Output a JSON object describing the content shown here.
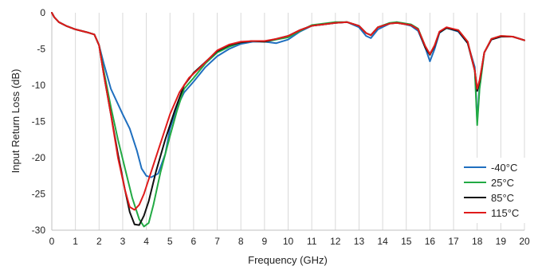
{
  "chart_data": {
    "type": "line",
    "title": "",
    "xlabel": "Frequency (GHz)",
    "ylabel": "Input Return Loss (dB)",
    "xlim": [
      0,
      20
    ],
    "ylim": [
      -30,
      0
    ],
    "xticks": [
      0,
      1,
      2,
      3,
      4,
      5,
      6,
      7,
      8,
      9,
      10,
      11,
      12,
      13,
      14,
      15,
      16,
      17,
      18,
      19,
      20
    ],
    "yticks": [
      0,
      -5,
      -10,
      -15,
      -20,
      -25,
      -30
    ],
    "grid": "vertical",
    "legend_position": "bottom-right",
    "series": [
      {
        "name": "-40°C",
        "color": "#1f6fbf",
        "points": [
          [
            0,
            0
          ],
          [
            0.1,
            -0.6
          ],
          [
            0.3,
            -1.3
          ],
          [
            0.6,
            -1.8
          ],
          [
            1,
            -2.3
          ],
          [
            1.5,
            -2.7
          ],
          [
            1.8,
            -3.0
          ],
          [
            2,
            -4.5
          ],
          [
            2.2,
            -7
          ],
          [
            2.5,
            -10.5
          ],
          [
            3,
            -14
          ],
          [
            3.3,
            -16
          ],
          [
            3.6,
            -19
          ],
          [
            3.8,
            -21.5
          ],
          [
            4,
            -22.5
          ],
          [
            4.2,
            -22.7
          ],
          [
            4.5,
            -22.2
          ],
          [
            4.8,
            -19.5
          ],
          [
            5,
            -16
          ],
          [
            5.3,
            -13
          ],
          [
            5.6,
            -11
          ],
          [
            6,
            -9.5
          ],
          [
            6.5,
            -7.5
          ],
          [
            7,
            -6
          ],
          [
            7.5,
            -5
          ],
          [
            8,
            -4.3
          ],
          [
            8.5,
            -4.0
          ],
          [
            9,
            -4.0
          ],
          [
            9.5,
            -4.2
          ],
          [
            10,
            -3.7
          ],
          [
            10.5,
            -2.6
          ],
          [
            11,
            -1.8
          ],
          [
            11.5,
            -1.6
          ],
          [
            12,
            -1.4
          ],
          [
            12.5,
            -1.3
          ],
          [
            13,
            -2.0
          ],
          [
            13.3,
            -3.2
          ],
          [
            13.5,
            -3.5
          ],
          [
            13.8,
            -2.3
          ],
          [
            14.3,
            -1.5
          ],
          [
            14.6,
            -1.3
          ],
          [
            15.2,
            -1.8
          ],
          [
            15.5,
            -2.5
          ],
          [
            15.8,
            -4.8
          ],
          [
            16,
            -6.7
          ],
          [
            16.2,
            -5.0
          ],
          [
            16.4,
            -2.8
          ],
          [
            16.7,
            -2.1
          ],
          [
            17.2,
            -2.6
          ],
          [
            17.6,
            -4.2
          ],
          [
            17.9,
            -7.5
          ],
          [
            18,
            -15
          ],
          [
            18.1,
            -10
          ],
          [
            18.3,
            -5.5
          ],
          [
            18.6,
            -3.7
          ],
          [
            19,
            -3.3
          ],
          [
            19.5,
            -3.3
          ],
          [
            20,
            -3.8
          ]
        ]
      },
      {
        "name": "25°C",
        "color": "#22aa44",
        "points": [
          [
            0,
            0
          ],
          [
            0.1,
            -0.6
          ],
          [
            0.3,
            -1.3
          ],
          [
            0.6,
            -1.8
          ],
          [
            1,
            -2.3
          ],
          [
            1.5,
            -2.7
          ],
          [
            1.8,
            -3.0
          ],
          [
            2,
            -4.5
          ],
          [
            2.2,
            -8
          ],
          [
            2.5,
            -13
          ],
          [
            2.8,
            -17.5
          ],
          [
            3.1,
            -21.5
          ],
          [
            3.4,
            -25.5
          ],
          [
            3.7,
            -28.5
          ],
          [
            3.9,
            -29.5
          ],
          [
            4.1,
            -29
          ],
          [
            4.3,
            -26.5
          ],
          [
            4.6,
            -22
          ],
          [
            5,
            -17
          ],
          [
            5.3,
            -13.5
          ],
          [
            5.6,
            -10.5
          ],
          [
            6,
            -9
          ],
          [
            6.5,
            -7
          ],
          [
            7,
            -5.5
          ],
          [
            7.5,
            -4.7
          ],
          [
            8,
            -4.1
          ],
          [
            8.5,
            -3.9
          ],
          [
            9,
            -4.0
          ],
          [
            9.5,
            -3.7
          ],
          [
            10,
            -3.4
          ],
          [
            10.5,
            -2.5
          ],
          [
            11,
            -1.7
          ],
          [
            11.5,
            -1.5
          ],
          [
            12,
            -1.3
          ],
          [
            12.5,
            -1.3
          ],
          [
            13,
            -1.8
          ],
          [
            13.3,
            -2.8
          ],
          [
            13.5,
            -3.1
          ],
          [
            13.8,
            -2.0
          ],
          [
            14.3,
            -1.4
          ],
          [
            14.6,
            -1.3
          ],
          [
            15.2,
            -1.6
          ],
          [
            15.5,
            -2.2
          ],
          [
            15.8,
            -4.6
          ],
          [
            16,
            -5.8
          ],
          [
            16.2,
            -4.5
          ],
          [
            16.4,
            -2.7
          ],
          [
            16.7,
            -2.1
          ],
          [
            17.2,
            -2.4
          ],
          [
            17.6,
            -4.0
          ],
          [
            17.9,
            -8
          ],
          [
            18,
            -15.5
          ],
          [
            18.1,
            -10.5
          ],
          [
            18.3,
            -5.5
          ],
          [
            18.6,
            -3.6
          ],
          [
            19,
            -3.2
          ],
          [
            19.5,
            -3.3
          ],
          [
            20,
            -3.8
          ]
        ]
      },
      {
        "name": "85°C",
        "color": "#111111",
        "points": [
          [
            0,
            0
          ],
          [
            0.1,
            -0.6
          ],
          [
            0.3,
            -1.3
          ],
          [
            0.6,
            -1.8
          ],
          [
            1,
            -2.3
          ],
          [
            1.5,
            -2.7
          ],
          [
            1.8,
            -3.0
          ],
          [
            2,
            -4.5
          ],
          [
            2.2,
            -8.5
          ],
          [
            2.5,
            -14
          ],
          [
            2.8,
            -19.5
          ],
          [
            3.1,
            -24.5
          ],
          [
            3.3,
            -27.5
          ],
          [
            3.5,
            -29.2
          ],
          [
            3.7,
            -29.3
          ],
          [
            3.9,
            -28
          ],
          [
            4.1,
            -26
          ],
          [
            4.4,
            -22
          ],
          [
            4.8,
            -17.5
          ],
          [
            5.2,
            -13.5
          ],
          [
            5.6,
            -10
          ],
          [
            6,
            -8.3
          ],
          [
            6.5,
            -6.8
          ],
          [
            7,
            -5.3
          ],
          [
            7.5,
            -4.5
          ],
          [
            8,
            -4.1
          ],
          [
            8.5,
            -3.9
          ],
          [
            9,
            -4.0
          ],
          [
            9.5,
            -3.6
          ],
          [
            10,
            -3.2
          ],
          [
            10.5,
            -2.4
          ],
          [
            11,
            -1.8
          ],
          [
            11.5,
            -1.6
          ],
          [
            12,
            -1.4
          ],
          [
            12.5,
            -1.3
          ],
          [
            13,
            -1.8
          ],
          [
            13.3,
            -2.8
          ],
          [
            13.5,
            -3.1
          ],
          [
            13.8,
            -2.0
          ],
          [
            14.3,
            -1.5
          ],
          [
            14.6,
            -1.4
          ],
          [
            15.2,
            -1.7
          ],
          [
            15.5,
            -2.3
          ],
          [
            15.8,
            -4.8
          ],
          [
            16,
            -5.8
          ],
          [
            16.2,
            -4.6
          ],
          [
            16.4,
            -2.7
          ],
          [
            16.7,
            -2.1
          ],
          [
            17.2,
            -2.5
          ],
          [
            17.6,
            -4.2
          ],
          [
            17.9,
            -8
          ],
          [
            18,
            -10.8
          ],
          [
            18.1,
            -9.5
          ],
          [
            18.3,
            -5.5
          ],
          [
            18.6,
            -3.7
          ],
          [
            19,
            -3.3
          ],
          [
            19.5,
            -3.3
          ],
          [
            20,
            -3.8
          ]
        ]
      },
      {
        "name": "115°C",
        "color": "#e01b1b",
        "points": [
          [
            0,
            0
          ],
          [
            0.1,
            -0.6
          ],
          [
            0.3,
            -1.3
          ],
          [
            0.6,
            -1.8
          ],
          [
            1,
            -2.3
          ],
          [
            1.5,
            -2.7
          ],
          [
            1.8,
            -3.0
          ],
          [
            2,
            -4.5
          ],
          [
            2.2,
            -8.5
          ],
          [
            2.5,
            -14
          ],
          [
            2.8,
            -20
          ],
          [
            3.1,
            -24.5
          ],
          [
            3.3,
            -26.8
          ],
          [
            3.5,
            -27.2
          ],
          [
            3.7,
            -26.5
          ],
          [
            3.9,
            -25
          ],
          [
            4.2,
            -22
          ],
          [
            4.6,
            -18
          ],
          [
            5,
            -14
          ],
          [
            5.4,
            -11
          ],
          [
            5.8,
            -9
          ],
          [
            6.2,
            -7.8
          ],
          [
            6.6,
            -6.5
          ],
          [
            7,
            -5.2
          ],
          [
            7.5,
            -4.4
          ],
          [
            8,
            -4.0
          ],
          [
            8.5,
            -3.9
          ],
          [
            9,
            -3.9
          ],
          [
            9.5,
            -3.6
          ],
          [
            10,
            -3.2
          ],
          [
            10.5,
            -2.4
          ],
          [
            11,
            -1.8
          ],
          [
            11.5,
            -1.6
          ],
          [
            12,
            -1.4
          ],
          [
            12.5,
            -1.3
          ],
          [
            13,
            -1.8
          ],
          [
            13.3,
            -2.8
          ],
          [
            13.5,
            -3.1
          ],
          [
            13.8,
            -2.0
          ],
          [
            14.3,
            -1.5
          ],
          [
            14.6,
            -1.4
          ],
          [
            15.2,
            -1.7
          ],
          [
            15.5,
            -2.3
          ],
          [
            15.8,
            -4.6
          ],
          [
            16,
            -5.7
          ],
          [
            16.2,
            -4.5
          ],
          [
            16.4,
            -2.6
          ],
          [
            16.7,
            -2.0
          ],
          [
            17.2,
            -2.4
          ],
          [
            17.6,
            -4.0
          ],
          [
            17.9,
            -8
          ],
          [
            18,
            -10.5
          ],
          [
            18.1,
            -9.3
          ],
          [
            18.3,
            -5.5
          ],
          [
            18.6,
            -3.6
          ],
          [
            19,
            -3.2
          ],
          [
            19.5,
            -3.3
          ],
          [
            20,
            -3.8
          ]
        ]
      }
    ]
  }
}
